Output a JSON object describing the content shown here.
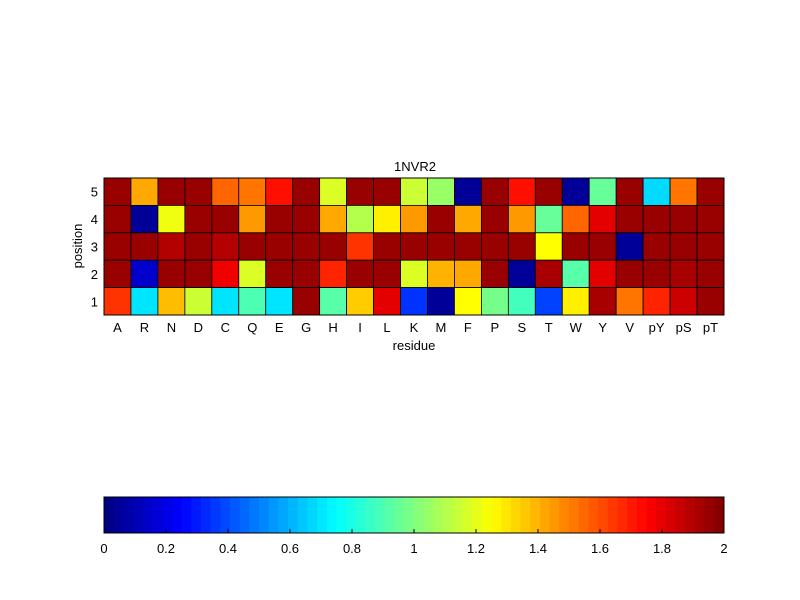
{
  "chart_data": [
    {
      "type": "heatmap",
      "title": "1NVR2",
      "xlabel": "residue",
      "ylabel": "position",
      "x_categories": [
        "A",
        "R",
        "N",
        "D",
        "C",
        "Q",
        "E",
        "G",
        "H",
        "I",
        "L",
        "K",
        "M",
        "F",
        "P",
        "S",
        "T",
        "W",
        "Y",
        "V",
        "pY",
        "pS",
        "pT"
      ],
      "y_categories": [
        "5",
        "4",
        "3",
        "2",
        "1"
      ],
      "value_range": [
        0,
        2
      ],
      "colormap": "jet",
      "grid": true,
      "values": [
        [
          1.95,
          1.42,
          1.95,
          1.95,
          1.55,
          1.52,
          1.72,
          1.95,
          1.18,
          1.95,
          1.95,
          1.15,
          1.05,
          0.05,
          1.95,
          1.72,
          1.95,
          0.05,
          0.95,
          1.95,
          0.68,
          1.52,
          1.95
        ],
        [
          1.95,
          0.05,
          1.22,
          1.95,
          1.95,
          1.45,
          1.95,
          1.95,
          1.42,
          1.1,
          1.28,
          1.45,
          1.95,
          1.42,
          1.95,
          1.45,
          0.95,
          1.55,
          1.8,
          1.95,
          1.95,
          1.95,
          1.95
        ],
        [
          1.95,
          1.95,
          1.9,
          1.95,
          1.9,
          1.95,
          1.95,
          1.95,
          1.95,
          1.65,
          1.95,
          1.95,
          1.95,
          1.95,
          1.95,
          1.95,
          1.25,
          1.95,
          1.95,
          0.05,
          1.95,
          1.95,
          1.95
        ],
        [
          1.95,
          0.15,
          1.95,
          1.95,
          1.78,
          1.18,
          1.95,
          1.95,
          1.68,
          1.95,
          1.95,
          1.18,
          1.4,
          1.42,
          1.95,
          0.05,
          1.92,
          0.92,
          1.8,
          1.95,
          1.95,
          1.92,
          1.95
        ],
        [
          1.65,
          0.7,
          1.38,
          1.15,
          0.7,
          0.9,
          0.7,
          1.95,
          0.92,
          1.35,
          1.8,
          0.35,
          0.05,
          1.25,
          0.98,
          0.88,
          0.38,
          1.28,
          1.92,
          1.52,
          1.68,
          1.85,
          1.95
        ]
      ]
    },
    {
      "type": "colorbar",
      "range": [
        0,
        2
      ],
      "ticks": [
        "0",
        "0.2",
        "0.4",
        "0.6",
        "0.8",
        "1",
        "1.2",
        "1.4",
        "1.6",
        "1.8",
        "2"
      ]
    }
  ]
}
